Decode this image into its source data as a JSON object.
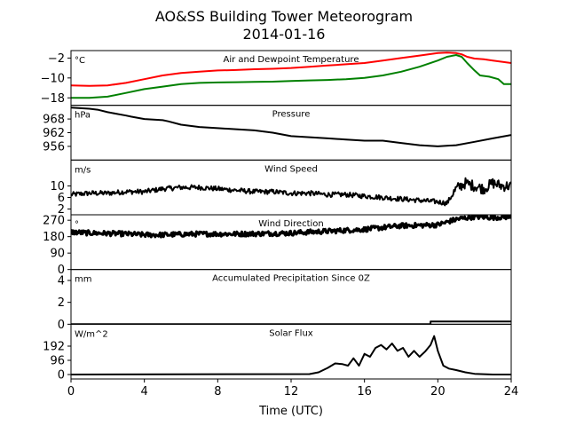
{
  "title_line1": "AO&SS Building Tower Meteorogram",
  "title_line2": "2014-01-16",
  "chart_data": {
    "type": "line",
    "xlabel": "Time (UTC)",
    "x_ticks": [
      0,
      4,
      8,
      12,
      16,
      20,
      24
    ],
    "xlim": [
      0,
      24
    ],
    "panels": [
      {
        "title": "Air and Dewpoint Temperature",
        "unit": "°C",
        "ylim": [
          -21,
          1
        ],
        "yticks": [
          -2,
          -10,
          -18
        ],
        "series": [
          {
            "color": "#ff0000",
            "width": 2,
            "x": [
              0,
              1,
              2,
              3,
              4,
              5,
              6,
              7,
              8,
              9,
              10,
              11,
              12,
              13,
              14,
              15,
              16,
              17,
              18,
              19,
              20,
              20.5,
              21,
              21.3,
              21.6,
              22,
              22.5,
              23,
              23.5,
              24
            ],
            "y": [
              -13,
              -13.2,
              -13,
              -12,
              -10.5,
              -9,
              -8,
              -7.5,
              -7,
              -6.8,
              -6.5,
              -6.3,
              -6,
              -5.5,
              -5,
              -4.5,
              -4,
              -3,
              -2,
              -1,
              0,
              0.2,
              0,
              -0.5,
              -1.5,
              -2.2,
              -2.5,
              -3,
              -3.5,
              -4
            ]
          },
          {
            "color": "#008000",
            "width": 2,
            "x": [
              0,
              1,
              2,
              3,
              4,
              5,
              6,
              7,
              8,
              9,
              10,
              11,
              12,
              13,
              14,
              15,
              16,
              17,
              18,
              19,
              20,
              20.5,
              21,
              21.3,
              21.6,
              22,
              22.3,
              22.8,
              23.3,
              23.6,
              24
            ],
            "y": [
              -18,
              -18,
              -17.5,
              -16,
              -14.5,
              -13.5,
              -12.5,
              -12,
              -11.8,
              -11.7,
              -11.6,
              -11.5,
              -11.2,
              -11,
              -10.8,
              -10.5,
              -10,
              -9,
              -7.5,
              -5.5,
              -3,
              -1.5,
              -0.8,
              -1.5,
              -4,
              -7,
              -9,
              -9.5,
              -10.5,
              -12.5,
              -12.5
            ]
          }
        ]
      },
      {
        "title": "Pressure",
        "unit": "hPa",
        "ylim": [
          950,
          974
        ],
        "yticks": [
          968,
          962,
          956
        ],
        "series": [
          {
            "color": "#000000",
            "width": 2,
            "x": [
              0,
              1,
              1.5,
              2,
              3,
              3.3,
              4,
              5,
              5.3,
              6,
              7,
              8,
              9,
              10,
              11,
              12,
              13,
              14,
              15,
              16,
              17,
              18,
              19,
              20,
              21,
              22,
              23,
              24
            ],
            "y": [
              973,
              972.5,
              972,
              971,
              969.5,
              969,
              968,
              967.5,
              967,
              965.5,
              964.5,
              964,
              963.5,
              963,
              962,
              960.5,
              960,
              959.5,
              959,
              958.5,
              958.5,
              957.5,
              956.5,
              956,
              956.5,
              958,
              959.5,
              961
            ]
          }
        ]
      },
      {
        "title": "Wind Speed",
        "unit": "m/s",
        "ylim": [
          0,
          19
        ],
        "yticks": [
          10,
          6,
          2
        ],
        "series": [
          {
            "color": "#000000",
            "width": 2,
            "noisy": true,
            "x": [
              0,
              1,
              2,
              3,
              4,
              5,
              6,
              7,
              8,
              9,
              10,
              11,
              12,
              13,
              14,
              15,
              16,
              17,
              18,
              19,
              20,
              20.5,
              21,
              21.5,
              22,
              22.5,
              23,
              23.5,
              24
            ],
            "y": [
              7,
              7.5,
              7.5,
              8,
              8,
              9,
              9.5,
              9.5,
              9,
              8.5,
              8,
              8,
              7.5,
              7.5,
              7,
              7,
              6.5,
              6,
              5.5,
              5,
              4.5,
              4,
              9,
              11,
              10,
              9,
              11,
              10,
              10
            ]
          }
        ]
      },
      {
        "title": "Wind Direction",
        "unit": "°",
        "ylim": [
          0,
          300
        ],
        "yticks": [
          270,
          180,
          90,
          0
        ],
        "series": [
          {
            "color": "#000000",
            "width": 3,
            "noisy": true,
            "x": [
              0,
              1,
              2,
              3,
              4,
              5,
              6,
              7,
              8,
              9,
              10,
              11,
              12,
              13,
              14,
              15,
              16,
              17,
              18,
              19,
              20,
              21,
              22,
              23,
              24
            ],
            "y": [
              205,
              200,
              198,
              195,
              190,
              190,
              193,
              195,
              195,
              195,
              196,
              198,
              200,
              205,
              210,
              215,
              220,
              230,
              240,
              242,
              245,
              275,
              290,
              285,
              290
            ]
          }
        ]
      },
      {
        "title": "Accumulated Precipitation Since 0Z",
        "unit": "mm",
        "ylim": [
          0,
          5
        ],
        "yticks": [
          4,
          2,
          0
        ],
        "series": [
          {
            "color": "#000000",
            "width": 2,
            "x": [
              0,
              19.6,
              19.6,
              24
            ],
            "y": [
              0,
              0,
              0.25,
              0.25
            ]
          }
        ]
      },
      {
        "title": "Solar Flux",
        "unit": "W/m^2",
        "ylim": [
          -30,
          340
        ],
        "yticks": [
          192,
          96,
          0
        ],
        "series": [
          {
            "color": "#000000",
            "width": 2,
            "x": [
              0,
              13,
              13.5,
              14,
              14.4,
              14.8,
              15.1,
              15.4,
              15.7,
              16,
              16.3,
              16.6,
              16.9,
              17.2,
              17.5,
              17.8,
              18.1,
              18.4,
              18.7,
              19,
              19.3,
              19.6,
              19.8,
              20,
              20.3,
              20.6,
              21,
              21.5,
              22,
              23,
              24
            ],
            "y": [
              0,
              3,
              15,
              45,
              75,
              70,
              60,
              110,
              60,
              140,
              120,
              180,
              200,
              170,
              210,
              160,
              180,
              120,
              160,
              120,
              155,
              200,
              260,
              160,
              60,
              40,
              30,
              15,
              5,
              0,
              0
            ]
          }
        ]
      }
    ]
  }
}
